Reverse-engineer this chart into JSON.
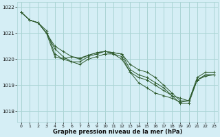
{
  "title": "",
  "xlabel": "Graphe pression niveau de la mer (hPa)",
  "ylabel": "",
  "xlim": [
    -0.5,
    23.5
  ],
  "ylim": [
    1017.6,
    1022.2
  ],
  "yticks": [
    1018,
    1019,
    1020,
    1021,
    1022
  ],
  "xticks": [
    0,
    1,
    2,
    3,
    4,
    5,
    6,
    7,
    8,
    9,
    10,
    11,
    12,
    13,
    14,
    15,
    16,
    17,
    18,
    19,
    20,
    21,
    22,
    23
  ],
  "bg_color": "#d5eef5",
  "grid_color": "#aad4d4",
  "line_color": "#2d5a2d",
  "lines": [
    [
      1021.8,
      1021.5,
      1021.4,
      1021.0,
      1020.1,
      1020.0,
      1019.9,
      1019.9,
      1020.1,
      1020.2,
      1020.3,
      1020.2,
      1020.0,
      1019.5,
      1019.3,
      1019.2,
      1019.0,
      1018.8,
      1018.6,
      1018.3,
      1018.3,
      1019.2,
      1019.4,
      1019.4
    ],
    [
      1021.8,
      1021.5,
      1021.4,
      1021.0,
      1020.5,
      1020.3,
      1020.1,
      1020.05,
      1020.15,
      1020.25,
      1020.3,
      1020.25,
      1020.2,
      1019.8,
      1019.6,
      1019.5,
      1019.3,
      1019.0,
      1018.7,
      1018.4,
      1018.4,
      1019.3,
      1019.5,
      1019.5
    ],
    [
      1021.8,
      1021.5,
      1021.4,
      1021.0,
      1020.4,
      1020.1,
      1019.9,
      1019.8,
      1020.0,
      1020.1,
      1020.2,
      1020.2,
      1020.1,
      1019.5,
      1019.1,
      1018.9,
      1018.7,
      1018.6,
      1018.5,
      1018.35,
      1018.4,
      1019.2,
      1019.35,
      1019.4
    ],
    [
      1021.8,
      1021.5,
      1021.4,
      1021.1,
      1020.2,
      1020.0,
      1020.1,
      1020.0,
      1020.15,
      1020.25,
      1020.3,
      1020.25,
      1020.2,
      1019.6,
      1019.4,
      1019.3,
      1019.1,
      1018.9,
      1018.6,
      1018.5,
      1018.4,
      1019.2,
      1019.4,
      1019.4
    ]
  ]
}
